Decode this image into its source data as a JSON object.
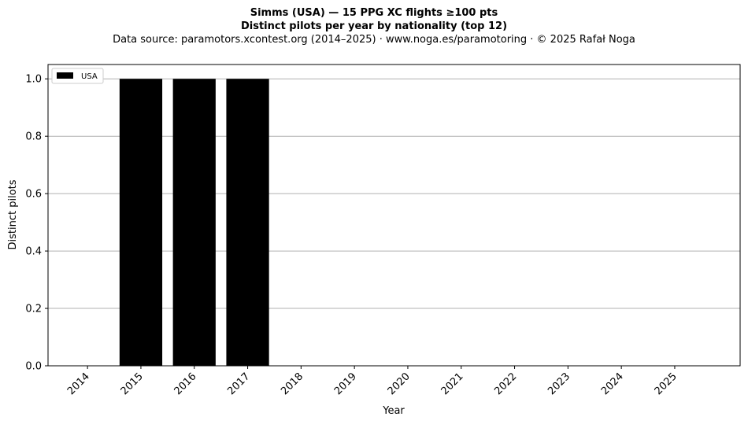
{
  "chart_data": {
    "type": "bar",
    "title": "Simms (USA)  —  15 PPG XC flights ≥100 pts",
    "subtitle": "Distinct pilots per year by nationality (top 12)",
    "source": "Data source: paramotors.xcontest.org (2014–2025)  ·  www.noga.es/paramotoring  ·  © 2025 Rafał Noga",
    "xlabel": "Year",
    "ylabel": "Distinct pilots",
    "categories": [
      "2014",
      "2015",
      "2016",
      "2017",
      "2018",
      "2019",
      "2020",
      "2021",
      "2022",
      "2023",
      "2024",
      "2025"
    ],
    "series": [
      {
        "name": "USA",
        "values": [
          0,
          1,
          1,
          1,
          0,
          0,
          0,
          0,
          0,
          0,
          0,
          0
        ],
        "color": "#000000"
      }
    ],
    "ylim": [
      0,
      1.05
    ],
    "yticks": [
      0.0,
      0.2,
      0.4,
      0.6,
      0.8,
      1.0
    ],
    "ytick_labels": [
      "0.0",
      "0.2",
      "0.4",
      "0.6",
      "0.8",
      "1.0"
    ],
    "grid": "y",
    "legend": "top-left",
    "grid_color": "#b0b0b0"
  }
}
